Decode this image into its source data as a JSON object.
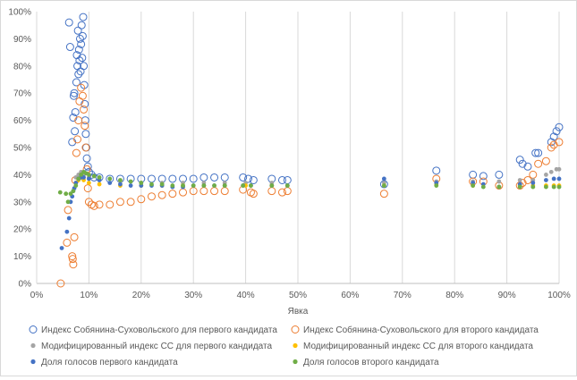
{
  "chart_data": {
    "type": "scatter",
    "xlabel": "Явка",
    "ylabel": "",
    "xlim": [
      0,
      1
    ],
    "ylim": [
      0,
      1
    ],
    "x_ticks": [
      "0%",
      "10%",
      "20%",
      "30%",
      "40%",
      "50%",
      "60%",
      "70%",
      "80%",
      "90%",
      "100%"
    ],
    "y_ticks": [
      "0%",
      "10%",
      "20%",
      "30%",
      "40%",
      "50%",
      "60%",
      "70%",
      "80%",
      "90%",
      "100%"
    ],
    "grid": "vertical",
    "legend_position": "bottom",
    "series": [
      {
        "name": "Индекс Собянина-Суховольского для первого кандидата",
        "marker": "hollow-circle",
        "color": "#4472C4",
        "points": [
          [
            0.062,
            0.96
          ],
          [
            0.064,
            0.87
          ],
          [
            0.068,
            0.52
          ],
          [
            0.07,
            0.61
          ],
          [
            0.071,
            0.69
          ],
          [
            0.072,
            0.7
          ],
          [
            0.073,
            0.56
          ],
          [
            0.074,
            0.63
          ],
          [
            0.076,
            0.74
          ],
          [
            0.077,
            0.84
          ],
          [
            0.078,
            0.8
          ],
          [
            0.079,
            0.93
          ],
          [
            0.08,
            0.77
          ],
          [
            0.081,
            0.86
          ],
          [
            0.082,
            0.82
          ],
          [
            0.083,
            0.9
          ],
          [
            0.084,
            0.78
          ],
          [
            0.085,
            0.88
          ],
          [
            0.086,
            0.95
          ],
          [
            0.087,
            0.83
          ],
          [
            0.088,
            0.91
          ],
          [
            0.089,
            0.98
          ],
          [
            0.09,
            0.8
          ],
          [
            0.091,
            0.73
          ],
          [
            0.092,
            0.66
          ],
          [
            0.093,
            0.6
          ],
          [
            0.094,
            0.55
          ],
          [
            0.095,
            0.5
          ],
          [
            0.096,
            0.46
          ],
          [
            0.098,
            0.43
          ],
          [
            0.1,
            0.41
          ],
          [
            0.105,
            0.4
          ],
          [
            0.11,
            0.39
          ],
          [
            0.12,
            0.39
          ],
          [
            0.14,
            0.385
          ],
          [
            0.16,
            0.385
          ],
          [
            0.18,
            0.385
          ],
          [
            0.2,
            0.385
          ],
          [
            0.22,
            0.385
          ],
          [
            0.24,
            0.385
          ],
          [
            0.26,
            0.385
          ],
          [
            0.28,
            0.385
          ],
          [
            0.3,
            0.385
          ],
          [
            0.32,
            0.39
          ],
          [
            0.34,
            0.39
          ],
          [
            0.36,
            0.39
          ],
          [
            0.395,
            0.39
          ],
          [
            0.405,
            0.385
          ],
          [
            0.415,
            0.38
          ],
          [
            0.45,
            0.385
          ],
          [
            0.47,
            0.38
          ],
          [
            0.48,
            0.38
          ],
          [
            0.665,
            0.365
          ],
          [
            0.765,
            0.415
          ],
          [
            0.835,
            0.4
          ],
          [
            0.855,
            0.395
          ],
          [
            0.885,
            0.4
          ],
          [
            0.925,
            0.455
          ],
          [
            0.93,
            0.44
          ],
          [
            0.94,
            0.43
          ],
          [
            0.955,
            0.48
          ],
          [
            0.96,
            0.48
          ],
          [
            0.985,
            0.52
          ],
          [
            0.99,
            0.54
          ],
          [
            0.995,
            0.56
          ],
          [
            1.0,
            0.575
          ]
        ]
      },
      {
        "name": "Индекс Собянина-Суховольского для второго кандидата",
        "marker": "hollow-circle",
        "color": "#ED7D31",
        "points": [
          [
            0.046,
            0.0
          ],
          [
            0.058,
            0.15
          ],
          [
            0.06,
            0.27
          ],
          [
            0.068,
            0.1
          ],
          [
            0.069,
            0.09
          ],
          [
            0.07,
            0.07
          ],
          [
            0.072,
            0.17
          ],
          [
            0.074,
            0.38
          ],
          [
            0.076,
            0.48
          ],
          [
            0.078,
            0.53
          ],
          [
            0.08,
            0.6
          ],
          [
            0.082,
            0.67
          ],
          [
            0.085,
            0.72
          ],
          [
            0.088,
            0.69
          ],
          [
            0.09,
            0.64
          ],
          [
            0.092,
            0.58
          ],
          [
            0.094,
            0.5
          ],
          [
            0.096,
            0.42
          ],
          [
            0.098,
            0.35
          ],
          [
            0.1,
            0.3
          ],
          [
            0.105,
            0.29
          ],
          [
            0.11,
            0.285
          ],
          [
            0.12,
            0.29
          ],
          [
            0.14,
            0.29
          ],
          [
            0.16,
            0.3
          ],
          [
            0.18,
            0.3
          ],
          [
            0.2,
            0.31
          ],
          [
            0.22,
            0.32
          ],
          [
            0.24,
            0.325
          ],
          [
            0.26,
            0.33
          ],
          [
            0.28,
            0.335
          ],
          [
            0.3,
            0.34
          ],
          [
            0.32,
            0.34
          ],
          [
            0.34,
            0.34
          ],
          [
            0.36,
            0.34
          ],
          [
            0.395,
            0.345
          ],
          [
            0.41,
            0.335
          ],
          [
            0.415,
            0.33
          ],
          [
            0.45,
            0.34
          ],
          [
            0.47,
            0.335
          ],
          [
            0.48,
            0.34
          ],
          [
            0.665,
            0.33
          ],
          [
            0.765,
            0.385
          ],
          [
            0.835,
            0.375
          ],
          [
            0.855,
            0.375
          ],
          [
            0.885,
            0.36
          ],
          [
            0.925,
            0.36
          ],
          [
            0.93,
            0.37
          ],
          [
            0.94,
            0.38
          ],
          [
            0.95,
            0.4
          ],
          [
            0.96,
            0.44
          ],
          [
            0.975,
            0.45
          ],
          [
            0.985,
            0.5
          ],
          [
            0.99,
            0.51
          ],
          [
            1.0,
            0.52
          ]
        ]
      },
      {
        "name": "Модифицированный индекс СС для первого кандидата",
        "marker": "filled-dot",
        "color": "#A5A5A5",
        "points": [
          [
            0.075,
            0.39
          ],
          [
            0.08,
            0.4
          ],
          [
            0.085,
            0.41
          ],
          [
            0.09,
            0.4
          ],
          [
            0.1,
            0.39
          ],
          [
            0.12,
            0.38
          ],
          [
            0.16,
            0.375
          ],
          [
            0.2,
            0.37
          ],
          [
            0.24,
            0.37
          ],
          [
            0.28,
            0.37
          ],
          [
            0.32,
            0.37
          ],
          [
            0.36,
            0.37
          ],
          [
            0.4,
            0.37
          ],
          [
            0.45,
            0.37
          ],
          [
            0.665,
            0.37
          ],
          [
            0.765,
            0.375
          ],
          [
            0.835,
            0.375
          ],
          [
            0.885,
            0.375
          ],
          [
            0.925,
            0.38
          ],
          [
            0.95,
            0.38
          ],
          [
            0.975,
            0.4
          ],
          [
            0.985,
            0.41
          ],
          [
            0.995,
            0.42
          ],
          [
            1.0,
            0.42
          ]
        ]
      },
      {
        "name": "Модифицированный индекс СС для второго кандидата",
        "marker": "filled-dot",
        "color": "#FFC000",
        "points": [
          [
            0.075,
            0.37
          ],
          [
            0.08,
            0.38
          ],
          [
            0.085,
            0.39
          ],
          [
            0.09,
            0.38
          ],
          [
            0.1,
            0.37
          ],
          [
            0.12,
            0.365
          ],
          [
            0.16,
            0.36
          ],
          [
            0.2,
            0.36
          ],
          [
            0.24,
            0.36
          ],
          [
            0.28,
            0.36
          ],
          [
            0.32,
            0.36
          ],
          [
            0.36,
            0.36
          ],
          [
            0.4,
            0.36
          ],
          [
            0.45,
            0.36
          ],
          [
            0.665,
            0.36
          ],
          [
            0.765,
            0.365
          ],
          [
            0.835,
            0.36
          ],
          [
            0.885,
            0.355
          ],
          [
            0.925,
            0.36
          ],
          [
            0.95,
            0.36
          ],
          [
            0.975,
            0.36
          ],
          [
            0.99,
            0.36
          ],
          [
            1.0,
            0.36
          ]
        ]
      },
      {
        "name": "Доля голосов первого кандидата",
        "marker": "filled-dot",
        "color": "#4472C4",
        "points": [
          [
            0.048,
            0.13
          ],
          [
            0.058,
            0.19
          ],
          [
            0.062,
            0.24
          ],
          [
            0.065,
            0.3
          ],
          [
            0.068,
            0.32
          ],
          [
            0.07,
            0.34
          ],
          [
            0.072,
            0.35
          ],
          [
            0.075,
            0.37
          ],
          [
            0.08,
            0.385
          ],
          [
            0.085,
            0.39
          ],
          [
            0.09,
            0.39
          ],
          [
            0.1,
            0.385
          ],
          [
            0.12,
            0.38
          ],
          [
            0.14,
            0.37
          ],
          [
            0.16,
            0.365
          ],
          [
            0.18,
            0.36
          ],
          [
            0.2,
            0.36
          ],
          [
            0.22,
            0.36
          ],
          [
            0.24,
            0.36
          ],
          [
            0.26,
            0.355
          ],
          [
            0.28,
            0.355
          ],
          [
            0.3,
            0.36
          ],
          [
            0.32,
            0.36
          ],
          [
            0.34,
            0.36
          ],
          [
            0.36,
            0.36
          ],
          [
            0.395,
            0.36
          ],
          [
            0.41,
            0.36
          ],
          [
            0.45,
            0.36
          ],
          [
            0.48,
            0.36
          ],
          [
            0.665,
            0.385
          ],
          [
            0.765,
            0.37
          ],
          [
            0.835,
            0.37
          ],
          [
            0.855,
            0.365
          ],
          [
            0.885,
            0.355
          ],
          [
            0.925,
            0.365
          ],
          [
            0.95,
            0.37
          ],
          [
            0.975,
            0.38
          ],
          [
            0.99,
            0.385
          ],
          [
            1.0,
            0.385
          ]
        ]
      },
      {
        "name": "Доля голосов второго кандидата",
        "marker": "filled-dot",
        "color": "#70AD47",
        "points": [
          [
            0.045,
            0.335
          ],
          [
            0.056,
            0.33
          ],
          [
            0.06,
            0.3
          ],
          [
            0.065,
            0.33
          ],
          [
            0.07,
            0.34
          ],
          [
            0.075,
            0.36
          ],
          [
            0.08,
            0.385
          ],
          [
            0.085,
            0.4
          ],
          [
            0.09,
            0.41
          ],
          [
            0.095,
            0.405
          ],
          [
            0.1,
            0.4
          ],
          [
            0.11,
            0.395
          ],
          [
            0.12,
            0.39
          ],
          [
            0.14,
            0.385
          ],
          [
            0.16,
            0.38
          ],
          [
            0.18,
            0.375
          ],
          [
            0.2,
            0.37
          ],
          [
            0.22,
            0.365
          ],
          [
            0.24,
            0.365
          ],
          [
            0.26,
            0.36
          ],
          [
            0.28,
            0.36
          ],
          [
            0.3,
            0.36
          ],
          [
            0.32,
            0.36
          ],
          [
            0.34,
            0.36
          ],
          [
            0.36,
            0.36
          ],
          [
            0.395,
            0.36
          ],
          [
            0.41,
            0.36
          ],
          [
            0.45,
            0.36
          ],
          [
            0.48,
            0.36
          ],
          [
            0.665,
            0.36
          ],
          [
            0.765,
            0.36
          ],
          [
            0.835,
            0.36
          ],
          [
            0.855,
            0.355
          ],
          [
            0.885,
            0.355
          ],
          [
            0.925,
            0.355
          ],
          [
            0.95,
            0.355
          ],
          [
            0.975,
            0.355
          ],
          [
            0.99,
            0.355
          ],
          [
            1.0,
            0.355
          ]
        ]
      }
    ]
  }
}
